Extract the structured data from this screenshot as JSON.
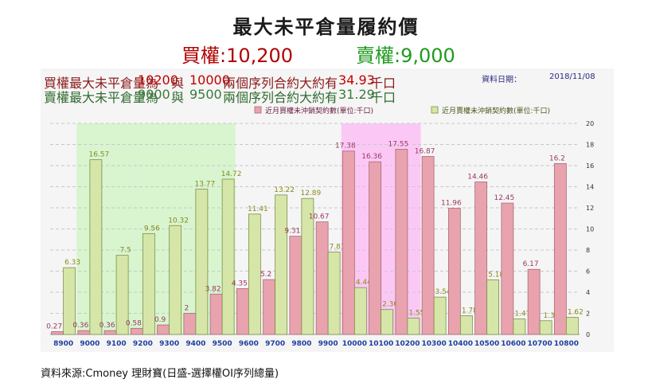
{
  "header": {
    "title": "最大未平倉量履約價",
    "call_text": "買權:10,200",
    "put_text": "賣權:9,000"
  },
  "info": {
    "call_row": {
      "label": "買權最大未平倉量為",
      "strike1": "10200",
      "conj": "與",
      "strike2": "10000",
      "desc": "兩個序列合約大約有",
      "value": "34.93",
      "unit": "千口"
    },
    "put_row": {
      "label": "賣權最大未平倉量為",
      "strike1": "9000",
      "conj": "與",
      "strike2": "9500",
      "desc": "兩個序列合約大約有",
      "value": "31.29",
      "unit": "千口"
    },
    "date_label": "資料日期：",
    "date_value": "2018/11/08"
  },
  "footer": "資料來源:Cmoney 理財寶(日盛-選擇權OI序列總量)",
  "chart_data": {
    "type": "bar",
    "categories": [
      "8900",
      "9000",
      "9100",
      "9200",
      "9300",
      "9400",
      "9500",
      "9600",
      "9700",
      "9800",
      "9900",
      "10000",
      "10100",
      "10200",
      "10300",
      "10400",
      "10500",
      "10600",
      "10700",
      "10800"
    ],
    "series": [
      {
        "name": "近月買權未沖銷契約數(單位:千口)",
        "values": [
          0.27,
          0.36,
          0.36,
          0.58,
          0.9,
          2,
          3.82,
          4.35,
          5.2,
          9.31,
          10.67,
          17.38,
          16.36,
          17.55,
          16.87,
          11.96,
          14.46,
          12.45,
          6.17,
          16.2
        ],
        "color": "#e8a3ae"
      },
      {
        "name": "近月賣權未沖銷契約數(單位:千口)",
        "values": [
          6.33,
          16.57,
          7.5,
          9.56,
          10.32,
          13.77,
          14.72,
          11.41,
          13.22,
          12.89,
          7.81,
          4.44,
          2.36,
          1.55,
          3.54,
          1.78,
          5.18,
          1.47,
          1.3,
          1.62
        ],
        "color": "#d6e6a8"
      }
    ],
    "ylim": [
      0,
      20
    ],
    "yticks": [
      0,
      2,
      4,
      6,
      8,
      10,
      12,
      14,
      16,
      18,
      20
    ],
    "legend_position": "top",
    "grid": true,
    "highlight_put_range": [
      "9000",
      "9500"
    ],
    "highlight_call_range": [
      "10000",
      "10200"
    ],
    "put_highlight_color": "#d8f5d0",
    "call_highlight_color": "#fbc8f5",
    "call_label_color": "#9b3a60",
    "put_label_color": "#8a8a1a",
    "axis_label_color": "#1f3f9f"
  }
}
